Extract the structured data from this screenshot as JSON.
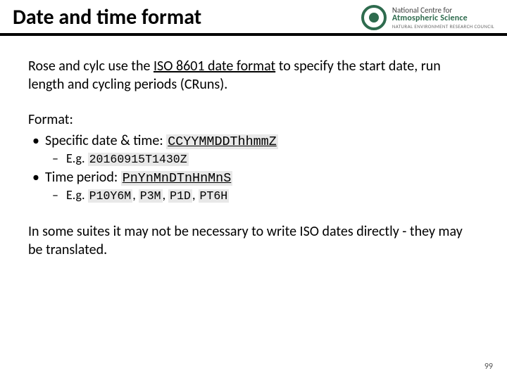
{
  "colors": {
    "accent": "#2e6b4e",
    "header_border": "#000000",
    "mono_bg": "#e8e8e8",
    "text": "#000000",
    "background": "#ffffff"
  },
  "header": {
    "title": "Date and time format",
    "logo": {
      "line1": "National Centre for",
      "line2": "Atmospheric Science",
      "line3": "NATURAL ENVIRONMENT RESEARCH COUNCIL"
    }
  },
  "intro": {
    "pre": "Rose and cylc use the ",
    "link": "ISO 8601 date format",
    "post": " to specify the start date, run length and cycling periods (CRuns)."
  },
  "format": {
    "label": "Format:",
    "items": [
      {
        "label": "Specific date & time: ",
        "code": "CCYYMMDDThhmmZ",
        "examples_prefix": "E.g. ",
        "examples": [
          "20160915T1430Z"
        ]
      },
      {
        "label": "Time period: ",
        "code": "PnYnMnDTnHnMnS",
        "examples_prefix": "E.g. ",
        "examples": [
          "P10Y6M",
          "P3M",
          "P1D",
          "PT6H"
        ]
      }
    ]
  },
  "closing": "In some suites it may not be necessary to write ISO dates directly - they may be translated.",
  "page_number": "99"
}
